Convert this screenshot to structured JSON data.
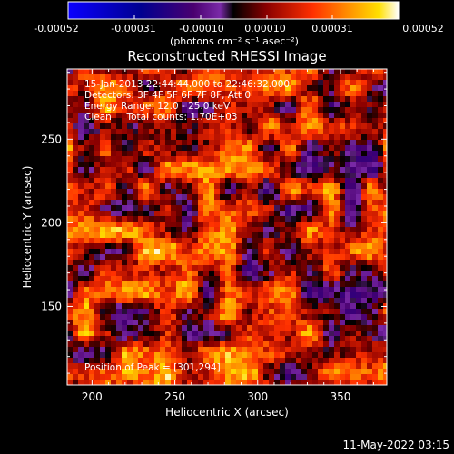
{
  "colorbar": {
    "ticks": [
      "-0.00052",
      "-0.00031",
      "-0.00010",
      "0.00010",
      "0.00031",
      "0.00052"
    ],
    "unit_label": "(photons cm⁻² s⁻¹ asec⁻²)",
    "colors": [
      "#0a00ff",
      "#000080",
      "#3a0060",
      "#6a1aa0",
      "#000000",
      "#8a0000",
      "#ff2a00",
      "#ff8000",
      "#ffd000",
      "#ffffff"
    ]
  },
  "chart_data": {
    "type": "heatmap",
    "title": "Reconstructed RHESSI Image",
    "xlabel": "Heliocentric X (arcsec)",
    "ylabel": "Heliocentric Y (arcsec)",
    "xlim": [
      185,
      378
    ],
    "ylim": [
      103,
      292
    ],
    "x_ticks": [
      200,
      250,
      300,
      350
    ],
    "y_ticks": [
      150,
      200,
      250
    ],
    "grid": false,
    "info_lines": [
      "15-Jan-2013 22:44:44.000 to 22:46:32.000",
      "Detectors: 3F 4F 5F 6F 7F 8F, Att 0",
      "Energy Range: 12.0 - 25.0 keV",
      "Clean     Total counts: 1.70E+03"
    ],
    "peak_label": "Position of Peak = [301,294]"
  },
  "footer": {
    "timestamp": "11-May-2022 03:15"
  }
}
